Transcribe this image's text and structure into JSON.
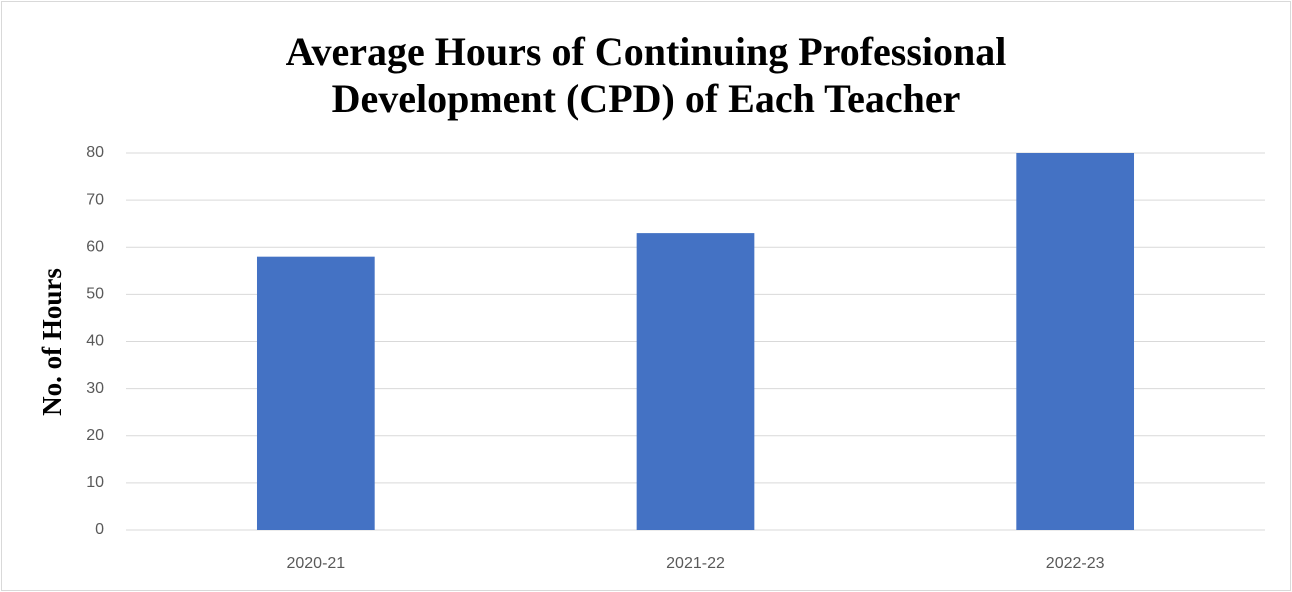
{
  "chart_data": {
    "type": "bar",
    "title": "Average Hours of Continuing Professional Development (CPD) of Each Teacher",
    "y_label": "No. of Hours",
    "categories": [
      "2020-21",
      "2021-22",
      "2022-23"
    ],
    "values": [
      58,
      63,
      80
    ],
    "color": "#4472c4",
    "ylim": [
      0,
      80
    ],
    "yticks": [
      0,
      10,
      20,
      30,
      40,
      50,
      60,
      70,
      80
    ],
    "grid": true
  }
}
